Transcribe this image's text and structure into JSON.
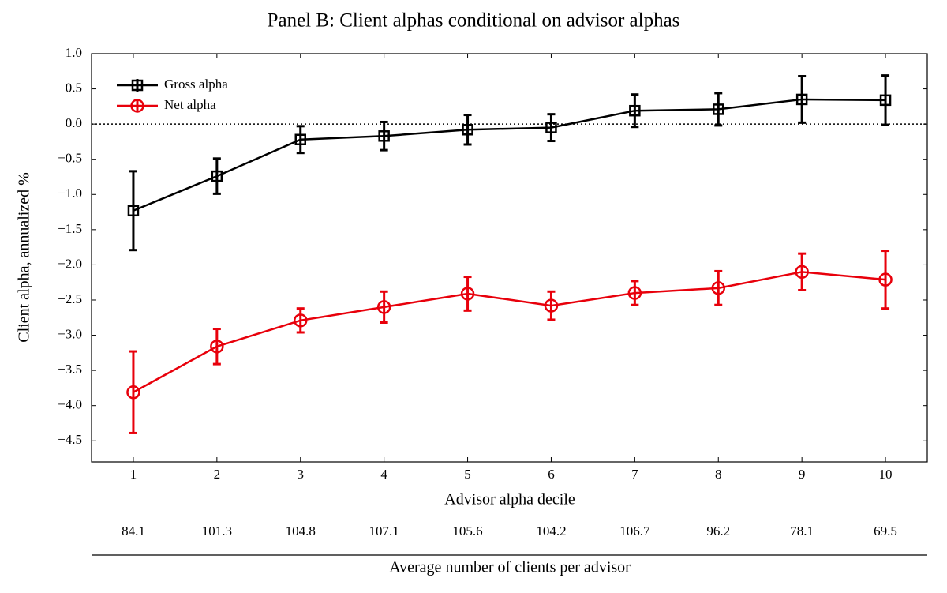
{
  "chart_data": {
    "type": "line",
    "title": "Panel B: Client alphas conditional on advisor alphas",
    "x_label": "Advisor alpha decile",
    "y_label": "Client alpha, annualized %",
    "x": [
      1,
      2,
      3,
      4,
      5,
      6,
      7,
      8,
      9,
      10
    ],
    "xlim": [
      0.5,
      10.5
    ],
    "xticks": [
      1,
      2,
      3,
      4,
      5,
      6,
      7,
      8,
      9,
      10
    ],
    "ylim": [
      -4.8,
      1.0
    ],
    "yticks": [
      {
        "value": 1.0,
        "label": "1.0"
      },
      0.5,
      {
        "value": 0.0,
        "label": "0.0"
      },
      {
        "value": -0.5,
        "label": "−0.5"
      },
      {
        "value": -1.0,
        "label": "−1.0"
      },
      {
        "value": -1.5,
        "label": "−1.5"
      },
      {
        "value": -2.0,
        "label": "−2.0"
      },
      {
        "value": -2.5,
        "label": "−2.5"
      },
      {
        "value": -3.0,
        "label": "−3.0"
      },
      {
        "value": -3.5,
        "label": "−3.5"
      },
      {
        "value": -4.0,
        "label": "−4.0"
      },
      {
        "value": -4.5,
        "label": "−4.5"
      }
    ],
    "reference_line": 0,
    "legend": "upper left",
    "series": [
      {
        "name": "Gross alpha",
        "color": "#000000",
        "marker": "square",
        "values": [
          -1.23,
          -0.74,
          -0.22,
          -0.17,
          -0.08,
          -0.05,
          0.19,
          0.21,
          0.35,
          0.34
        ],
        "errors": [
          0.56,
          0.25,
          0.19,
          0.2,
          0.21,
          0.19,
          0.23,
          0.23,
          0.33,
          0.35
        ]
      },
      {
        "name": "Net alpha",
        "color": "#e8000b",
        "marker": "circle",
        "values": [
          -3.81,
          -3.16,
          -2.79,
          -2.6,
          -2.41,
          -2.58,
          -2.4,
          -2.33,
          -2.1,
          -2.21
        ],
        "errors": [
          0.58,
          0.25,
          0.17,
          0.22,
          0.24,
          0.2,
          0.17,
          0.24,
          0.26,
          0.41
        ]
      }
    ],
    "clients_label": "Average number of clients per advisor",
    "clients": [
      84.1,
      101.3,
      104.8,
      107.1,
      105.6,
      104.2,
      106.7,
      96.2,
      78.1,
      69.5
    ]
  }
}
